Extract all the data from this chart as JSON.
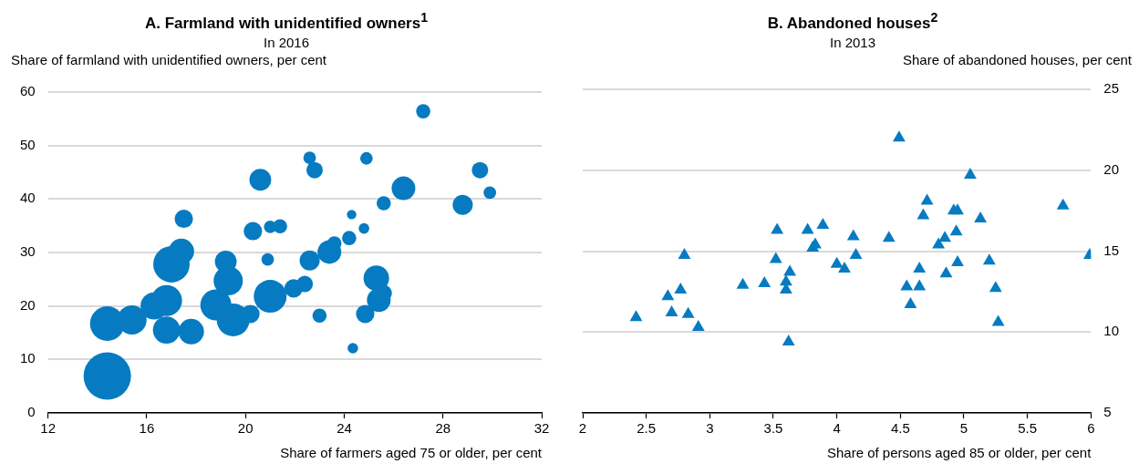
{
  "chart_data": [
    {
      "type": "bubble",
      "title": "A. Farmland with unidentified owners$^{1}$",
      "subtitle": "In 2016",
      "ylabel": "Share of farmland with unidentified owners, per cent",
      "xlabel": "Share of farmers aged 75 or older, per cent",
      "xlim": [
        12,
        32
      ],
      "xticks": [
        12,
        16,
        20,
        24,
        28,
        32
      ],
      "ylim": [
        0,
        60
      ],
      "yticks": [
        0,
        10,
        20,
        30,
        40,
        50,
        60
      ],
      "grid": "y",
      "marker": "circle",
      "series": [
        {
          "color": "#067bc2",
          "x": [
            14.4,
            14.4,
            15.4,
            16.3,
            16.8,
            16.8,
            17.0,
            17.4,
            17.5,
            17.8,
            18.8,
            19.2,
            19.3,
            19.5,
            20.2,
            20.6,
            20.3,
            20.9,
            21.0,
            21.0,
            21.4,
            21.95,
            22.4,
            22.6,
            22.6,
            22.8,
            23.0,
            23.4,
            23.6,
            24.2,
            24.3,
            24.35,
            24.8,
            24.85,
            24.9,
            25.3,
            25.4,
            25.6,
            25.6,
            26.4,
            27.2,
            28.8,
            29.5,
            29.9
          ],
          "values": [
            6.9,
            16.7,
            17.4,
            20,
            21,
            15.5,
            27.8,
            30.2,
            36.3,
            15.2,
            20.2,
            28.3,
            24.7,
            17.4,
            18.5,
            43.6,
            34.0,
            28.7,
            21.8,
            34.8,
            34.9,
            23.3,
            24.1,
            28.5,
            47.7,
            45.4,
            18.2,
            30.1,
            31.7,
            32.7,
            37.1,
            12.1,
            34.5,
            18.5,
            47.6,
            25.2,
            21.1,
            22.4,
            39.2,
            42.0,
            56.4,
            38.9,
            45.4,
            41.2
          ],
          "sizes": [
            1,
            0.53,
            0.38,
            0.33,
            0.43,
            0.33,
            0.59,
            0.29,
            0.15,
            0.29,
            0.43,
            0.21,
            0.38,
            0.48,
            0.15,
            0.21,
            0.15,
            0.07,
            0.48,
            0.07,
            0.09,
            0.15,
            0.12,
            0.18,
            0.07,
            0.12,
            0.09,
            0.25,
            0.09,
            0.09,
            0.04,
            0.05,
            0.05,
            0.15,
            0.07,
            0.29,
            0.25,
            0.12,
            0.09,
            0.25,
            0.09,
            0.18,
            0.12,
            0.07
          ]
        }
      ]
    },
    {
      "type": "scatter",
      "title": "B. Abandoned houses$^{2}$",
      "subtitle": "In 2013",
      "ylabel": "Share of abandoned houses, per cent",
      "xlabel": "Share of persons aged 85 or older, per cent",
      "xlim": [
        2,
        6
      ],
      "xticks": [
        2,
        {
          "value": 2.5,
          "label": "2.5"
        },
        3,
        {
          "value": 3.5,
          "label": "3.5"
        },
        4,
        {
          "value": 4.5,
          "label": "4.5"
        },
        5,
        {
          "value": 5.5,
          "label": "5.5"
        },
        6
      ],
      "ylim": [
        5,
        25
      ],
      "yticks": [
        5,
        10,
        15,
        20,
        25
      ],
      "grid": "y",
      "marker": "triangle",
      "series": [
        {
          "color": "#067bc2",
          "x": [
            2.42,
            2.67,
            2.77,
            2.7,
            2.83,
            2.91,
            2.8,
            3.26,
            3.43,
            3.53,
            3.52,
            3.63,
            3.6,
            3.6,
            3.62,
            3.77,
            3.83,
            3.81,
            3.89,
            4.0,
            4.06,
            4.13,
            4.15,
            4.41,
            4.49,
            4.55,
            4.58,
            4.65,
            4.65,
            4.71,
            4.68,
            4.8,
            4.85,
            4.86,
            4.92,
            4.95,
            4.94,
            4.95,
            5.05,
            5.13,
            5.2,
            5.25,
            5.27,
            5.78,
            5.99
          ],
          "values": [
            10.9,
            12.2,
            12.6,
            11.2,
            11.1,
            10.3,
            14.75,
            12.9,
            13.0,
            16.3,
            14.5,
            13.7,
            13.1,
            12.6,
            9.4,
            16.3,
            15.4,
            15.2,
            16.6,
            14.2,
            13.9,
            15.9,
            14.75,
            15.8,
            22.0,
            12.8,
            11.7,
            13.9,
            12.8,
            18.1,
            17.2,
            15.4,
            15.8,
            13.6,
            17.5,
            17.5,
            16.2,
            14.3,
            19.7,
            17.0,
            14.4,
            12.7,
            10.6,
            17.8,
            14.75
          ]
        }
      ]
    }
  ]
}
